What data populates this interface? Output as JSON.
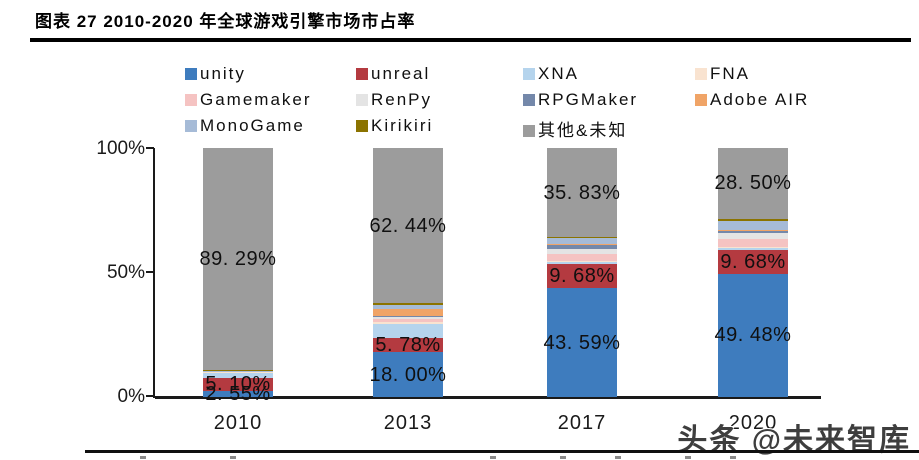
{
  "header": {
    "title": "图表 27 2010-2020 年全球游戏引擎市场市占率"
  },
  "watermark": {
    "text": "头条 @未来智库"
  },
  "legend": {
    "rows": [
      [
        "unity",
        "unreal",
        "XNA",
        "FNA"
      ],
      [
        "Gamemaker",
        "RenPy",
        "RPGMaker",
        "Adobe AIR"
      ],
      [
        "MonoGame",
        "Kirikiri",
        "其他&未知"
      ]
    ]
  },
  "chart_data": {
    "type": "bar",
    "subtype": "stacked-percent",
    "title": "图表 27 2010-2020 年全球游戏引擎市场市占率",
    "categories": [
      "2010",
      "2013",
      "2017",
      "2020"
    ],
    "yticks": [
      "100%",
      "50%",
      "0%"
    ],
    "ylim": [
      0,
      100
    ],
    "legend_position": "top",
    "grid": false,
    "series": [
      {
        "name": "unity",
        "color": "#3E7CBE",
        "values": [
          2.55,
          18.0,
          43.59,
          49.48
        ],
        "labels": [
          "2. 55%",
          "18. 00%",
          "43. 59%",
          "49. 48%"
        ]
      },
      {
        "name": "unreal",
        "color": "#B43A40",
        "values": [
          5.1,
          5.78,
          9.68,
          9.68
        ],
        "labels": [
          "5. 10%",
          "5. 78%",
          "9. 68%",
          "9. 68%"
        ]
      },
      {
        "name": "XNA",
        "color": "#B5D4ED",
        "values": [
          2.4,
          5.5,
          0.8,
          0.5
        ]
      },
      {
        "name": "FNA",
        "color": "#F9E3D0",
        "values": [
          0.12,
          1.0,
          0.6,
          0.4
        ]
      },
      {
        "name": "Gamemaker",
        "color": "#F5C3C2",
        "values": [
          0.12,
          1.0,
          2.8,
          3.5
        ]
      },
      {
        "name": "RenPy",
        "color": "#E4E4E4",
        "values": [
          0.1,
          0.8,
          2.0,
          2.4
        ]
      },
      {
        "name": "RPGMaker",
        "color": "#7488AA",
        "values": [
          0.08,
          0.5,
          1.4,
          0.9
        ]
      },
      {
        "name": "Adobe AIR",
        "color": "#F0A467",
        "values": [
          0.08,
          2.6,
          0.5,
          0.4
        ]
      },
      {
        "name": "MonoGame",
        "color": "#A6BBD7",
        "values": [
          0.1,
          1.8,
          2.3,
          3.49
        ]
      },
      {
        "name": "Kirikiri",
        "color": "#8B7300",
        "values": [
          0.06,
          0.58,
          0.5,
          0.75
        ]
      },
      {
        "name": "其他&未知",
        "color": "#9C9C9C",
        "values": [
          89.29,
          62.44,
          35.83,
          28.5
        ],
        "labels": [
          "89. 29%",
          "62. 44%",
          "35. 83%",
          "28. 50%"
        ]
      }
    ]
  }
}
